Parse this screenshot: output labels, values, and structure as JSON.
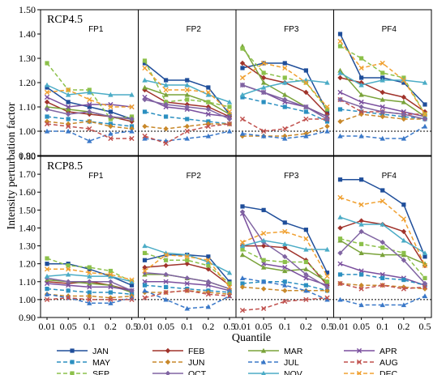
{
  "chart_data": {
    "type": "line",
    "ylabel": "Intensity perturbation factor",
    "xlabel": "Quantile",
    "periods": [
      "FP1",
      "FP2",
      "FP3",
      "PF4"
    ],
    "quantiles": [
      "0.01",
      "0.05",
      "0.1",
      "0.2",
      "0.5"
    ],
    "reference_line": 1.0,
    "legend_position": "bottom",
    "months": [
      {
        "name": "JAN",
        "color": "#1f4e9a",
        "dash": false,
        "marker": "square"
      },
      {
        "name": "FEB",
        "color": "#a0332b",
        "dash": false,
        "marker": "diamond"
      },
      {
        "name": "MAR",
        "color": "#7aa33a",
        "dash": false,
        "marker": "triangle"
      },
      {
        "name": "APR",
        "color": "#7a4f9e",
        "dash": false,
        "marker": "x"
      },
      {
        "name": "MAY",
        "color": "#2b8fc0",
        "dash": true,
        "marker": "square"
      },
      {
        "name": "JUN",
        "color": "#c8882a",
        "dash": true,
        "marker": "diamond"
      },
      {
        "name": "JUL",
        "color": "#3a78c8",
        "dash": true,
        "marker": "triangle"
      },
      {
        "name": "AUG",
        "color": "#c0504d",
        "dash": true,
        "marker": "x"
      },
      {
        "name": "SEP",
        "color": "#8cc04a",
        "dash": true,
        "marker": "square"
      },
      {
        "name": "OCT",
        "color": "#8064a2",
        "dash": false,
        "marker": "diamond"
      },
      {
        "name": "NOV",
        "color": "#4bacc6",
        "dash": false,
        "marker": "triangle"
      },
      {
        "name": "DEC",
        "color": "#f0a030",
        "dash": true,
        "marker": "x"
      }
    ],
    "panels": [
      {
        "title": "RCP4.5",
        "ylim": [
          0.9,
          1.5
        ],
        "yticks": [
          "0.90",
          "1.00",
          "1.10",
          "1.20",
          "1.30",
          "1.40",
          "1.50"
        ],
        "series": {
          "JAN": [
            [
              1.18,
              1.12,
              1.1,
              1.08,
              1.05
            ],
            [
              1.28,
              1.21,
              1.21,
              1.18,
              1.07
            ],
            [
              1.26,
              1.28,
              1.28,
              1.25,
              1.08
            ],
            [
              1.4,
              1.22,
              1.22,
              1.2,
              1.11
            ]
          ],
          "FEB": [
            [
              1.12,
              1.08,
              1.07,
              1.06,
              1.04
            ],
            [
              1.17,
              1.12,
              1.11,
              1.1,
              1.06
            ],
            [
              1.28,
              1.22,
              1.2,
              1.16,
              1.07
            ],
            [
              1.22,
              1.2,
              1.16,
              1.14,
              1.08
            ]
          ],
          "MAR": [
            [
              1.1,
              1.09,
              1.08,
              1.06,
              1.05
            ],
            [
              1.18,
              1.15,
              1.15,
              1.12,
              1.07
            ],
            [
              1.35,
              1.2,
              1.15,
              1.1,
              1.06
            ],
            [
              1.25,
              1.15,
              1.13,
              1.12,
              1.06
            ]
          ],
          "APR": [
            [
              1.14,
              1.1,
              1.11,
              1.11,
              1.1
            ],
            [
              1.14,
              1.1,
              1.09,
              1.07,
              1.06
            ],
            [
              1.19,
              1.16,
              1.12,
              1.1,
              1.06
            ],
            [
              1.16,
              1.12,
              1.1,
              1.08,
              1.06
            ]
          ],
          "MAY": [
            [
              1.06,
              1.05,
              1.04,
              1.03,
              1.02
            ],
            [
              1.08,
              1.06,
              1.05,
              1.04,
              1.03
            ],
            [
              1.14,
              1.12,
              1.1,
              1.08,
              1.04
            ],
            [
              1.09,
              1.08,
              1.07,
              1.06,
              1.05
            ]
          ],
          "JUN": [
            [
              1.04,
              1.03,
              1.04,
              1.02,
              1.01
            ],
            [
              1.02,
              1.01,
              1.02,
              1.03,
              1.03
            ],
            [
              0.98,
              0.98,
              0.98,
              0.99,
              1.02
            ],
            [
              1.04,
              1.07,
              1.06,
              1.05,
              1.05
            ]
          ],
          "JUL": [
            [
              1.0,
              1.0,
              0.96,
              0.99,
              1.0
            ],
            [
              0.97,
              0.96,
              0.97,
              0.98,
              1.0
            ],
            [
              0.99,
              0.98,
              0.97,
              0.98,
              1.0
            ],
            [
              0.98,
              0.98,
              0.97,
              0.97,
              1.02
            ]
          ],
          "AUG": [
            [
              1.03,
              1.02,
              1.01,
              0.97,
              0.97
            ],
            [
              0.98,
              0.95,
              1.0,
              1.02,
              1.03
            ],
            [
              1.05,
              1.0,
              1.01,
              1.05,
              1.05
            ],
            [
              1.13,
              1.08,
              1.08,
              1.07,
              1.07
            ]
          ],
          "SEP": [
            [
              1.28,
              1.17,
              1.17,
              1.05,
              1.06
            ],
            [
              1.29,
              1.12,
              1.13,
              1.12,
              1.1
            ],
            [
              1.34,
              1.24,
              1.22,
              1.2,
              1.09
            ],
            [
              1.35,
              1.3,
              1.24,
              1.22,
              1.07
            ]
          ],
          "OCT": [
            [
              1.09,
              1.07,
              1.08,
              1.06,
              1.05
            ],
            [
              1.13,
              1.11,
              1.1,
              1.09,
              1.05
            ],
            [
              1.19,
              1.16,
              1.13,
              1.1,
              1.05
            ],
            [
              1.13,
              1.1,
              1.08,
              1.07,
              1.05
            ]
          ],
          "NOV": [
            [
              1.19,
              1.15,
              1.16,
              1.15,
              1.15
            ],
            [
              1.21,
              1.19,
              1.19,
              1.15,
              1.12
            ],
            [
              1.15,
              1.18,
              1.2,
              1.21,
              1.2
            ],
            [
              1.24,
              1.19,
              1.21,
              1.21,
              1.2
            ]
          ],
          "DEC": [
            [
              1.16,
              1.17,
              1.13,
              1.1,
              1.1
            ],
            [
              1.26,
              1.17,
              1.17,
              1.16,
              1.08
            ],
            [
              1.22,
              1.28,
              1.26,
              1.2,
              1.1
            ],
            [
              1.37,
              1.26,
              1.28,
              1.21,
              1.07
            ]
          ]
        }
      },
      {
        "title": "RCP8.5",
        "ylim": [
          0.9,
          1.8
        ],
        "yticks": [
          "0.90",
          "1.00",
          "1.10",
          "1.20",
          "1.30",
          "1.40",
          "1.50",
          "1.60",
          "1.70",
          "1.80"
        ],
        "series": {
          "JAN": [
            [
              1.2,
              1.2,
              1.17,
              1.13,
              1.08
            ],
            [
              1.22,
              1.25,
              1.25,
              1.24,
              1.1
            ],
            [
              1.52,
              1.5,
              1.43,
              1.39,
              1.15
            ],
            [
              1.67,
              1.67,
              1.61,
              1.53,
              1.24
            ]
          ],
          "FEB": [
            [
              1.1,
              1.09,
              1.1,
              1.08,
              1.05
            ],
            [
              1.18,
              1.19,
              1.2,
              1.17,
              1.08
            ],
            [
              1.3,
              1.3,
              1.29,
              1.22,
              1.08
            ],
            [
              1.4,
              1.44,
              1.42,
              1.38,
              1.19
            ]
          ],
          "MAR": [
            [
              1.11,
              1.1,
              1.09,
              1.08,
              1.04
            ],
            [
              1.14,
              1.14,
              1.12,
              1.1,
              1.06
            ],
            [
              1.25,
              1.18,
              1.16,
              1.17,
              1.1
            ],
            [
              1.33,
              1.26,
              1.25,
              1.25,
              1.2
            ]
          ],
          "APR": [
            [
              1.09,
              1.08,
              1.07,
              1.07,
              1.05
            ],
            [
              1.1,
              1.1,
              1.09,
              1.08,
              1.05
            ],
            [
              1.48,
              1.2,
              1.18,
              1.12,
              1.08
            ],
            [
              1.2,
              1.16,
              1.14,
              1.12,
              1.08
            ]
          ],
          "MAY": [
            [
              1.06,
              1.05,
              1.04,
              1.04,
              1.03
            ],
            [
              1.08,
              1.07,
              1.06,
              1.05,
              1.04
            ],
            [
              1.09,
              1.1,
              1.1,
              1.08,
              1.05
            ],
            [
              1.14,
              1.14,
              1.12,
              1.11,
              1.08
            ]
          ],
          "JUN": [
            [
              1.03,
              1.02,
              1.02,
              1.01,
              1.02
            ],
            [
              1.04,
              1.04,
              1.05,
              1.04,
              1.03
            ],
            [
              1.07,
              1.06,
              1.05,
              1.05,
              1.05
            ],
            [
              1.09,
              1.08,
              1.08,
              1.07,
              1.06
            ]
          ],
          "JUL": [
            [
              1.03,
              1.01,
              0.98,
              0.98,
              1.01
            ],
            [
              1.05,
              1.0,
              0.95,
              0.96,
              1.02
            ],
            [
              1.12,
              1.1,
              1.08,
              1.05,
              1.0
            ],
            [
              1.0,
              0.97,
              0.97,
              0.97,
              1.02
            ]
          ],
          "AUG": [
            [
              1.0,
              1.01,
              1.0,
              1.0,
              1.0
            ],
            [
              1.01,
              1.04,
              1.05,
              1.03,
              1.02
            ],
            [
              0.94,
              0.95,
              0.99,
              1.0,
              1.01
            ],
            [
              1.09,
              1.06,
              1.08,
              1.06,
              1.07
            ]
          ],
          "SEP": [
            [
              1.23,
              1.19,
              1.18,
              1.16,
              1.1
            ],
            [
              1.26,
              1.22,
              1.22,
              1.19,
              1.09
            ],
            [
              1.28,
              1.22,
              1.21,
              1.21,
              1.1
            ],
            [
              1.34,
              1.31,
              1.29,
              1.26,
              1.12
            ]
          ],
          "OCT": [
            [
              1.12,
              1.1,
              1.1,
              1.1,
              1.05
            ],
            [
              1.15,
              1.14,
              1.12,
              1.1,
              1.06
            ],
            [
              1.49,
              1.32,
              1.24,
              1.14,
              1.07
            ],
            [
              1.26,
              1.38,
              1.32,
              1.22,
              1.09
            ]
          ],
          "NOV": [
            [
              1.13,
              1.14,
              1.13,
              1.13,
              1.1
            ],
            [
              1.3,
              1.26,
              1.25,
              1.21,
              1.15
            ],
            [
              1.3,
              1.33,
              1.31,
              1.28,
              1.28
            ],
            [
              1.46,
              1.42,
              1.42,
              1.33,
              1.26
            ]
          ],
          "DEC": [
            [
              1.17,
              1.17,
              1.15,
              1.14,
              1.11
            ],
            [
              1.16,
              1.25,
              1.24,
              1.22,
              1.07
            ],
            [
              1.32,
              1.37,
              1.38,
              1.34,
              1.13
            ],
            [
              1.57,
              1.53,
              1.55,
              1.45,
              1.19
            ]
          ]
        }
      }
    ]
  }
}
